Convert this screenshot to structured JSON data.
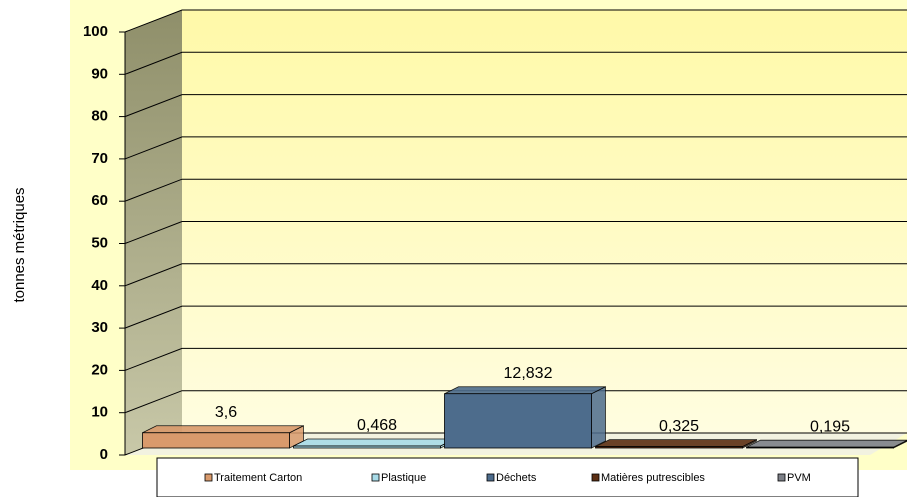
{
  "chart_data": {
    "type": "bar3d",
    "y_label": "tonnes métriques",
    "ylim": [
      0,
      100
    ],
    "yticks": [
      0,
      10,
      20,
      30,
      40,
      50,
      60,
      70,
      80,
      90,
      100
    ],
    "grid": true,
    "legend": "bottom",
    "series": [
      {
        "name": "Traitement Carton",
        "color": "#d99a6c",
        "values": [
          3.6
        ],
        "value_labels": [
          "3,6"
        ]
      },
      {
        "name": "Plastique",
        "color": "#a8dbe8",
        "values": [
          0.468
        ],
        "value_labels": [
          "0,468"
        ]
      },
      {
        "name": "Déchets",
        "color": "#4d6c8c",
        "values": [
          12.832
        ],
        "value_labels": [
          "12,832"
        ]
      },
      {
        "name": "Matières putrescibles",
        "color": "#5c2f14",
        "values": [
          0.325
        ],
        "value_labels": [
          "0,325"
        ]
      },
      {
        "name": "PVM",
        "color": "#7d8088",
        "values": [
          0.195
        ],
        "value_labels": [
          "0,195"
        ]
      }
    ]
  }
}
